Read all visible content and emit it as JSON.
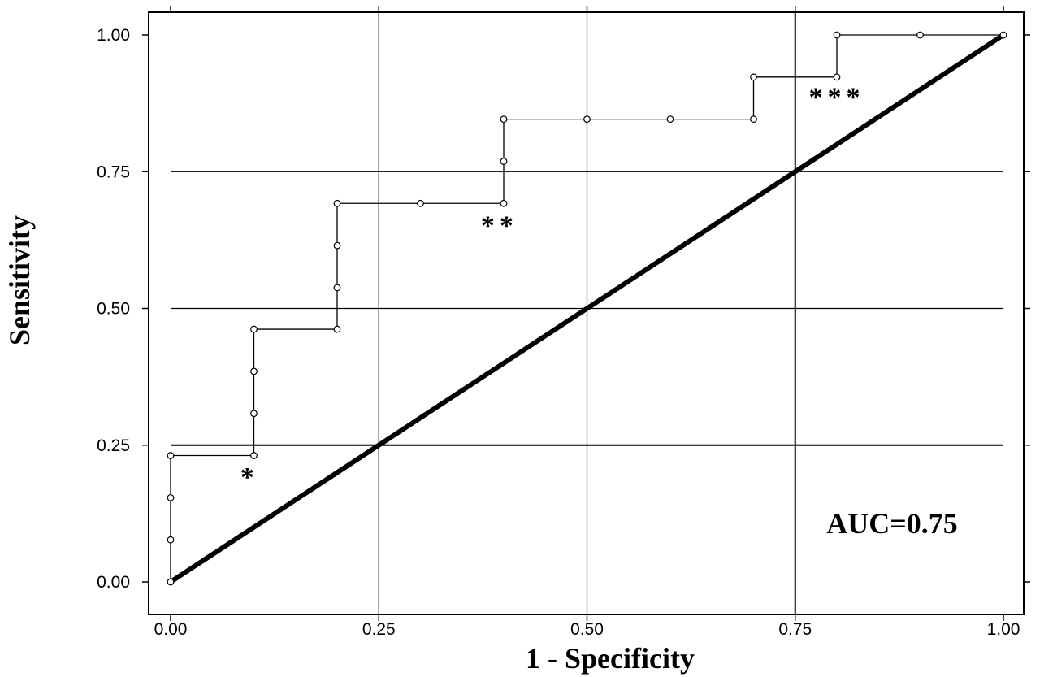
{
  "chart_data": {
    "type": "line",
    "xlabel": "1 - Specificity",
    "ylabel": "Sensitivity",
    "xlim": [
      0,
      1
    ],
    "ylim": [
      0,
      1
    ],
    "xticks": [
      0,
      0.25,
      0.5,
      0.75,
      1
    ],
    "yticks": [
      0,
      0.25,
      0.5,
      0.75,
      1
    ],
    "xtick_labels": [
      "0.00",
      "0.25",
      "0.50",
      "0.75",
      "1.00"
    ],
    "ytick_labels": [
      "0.00",
      "0.25",
      "0.50",
      "0.75",
      "1.00"
    ],
    "grid": true,
    "series": [
      {
        "style": "step-line-with-circle-markers",
        "x": [
          0.0,
          0.0,
          0.0,
          0.0,
          0.1,
          0.1,
          0.1,
          0.1,
          0.2,
          0.2,
          0.2,
          0.2,
          0.3,
          0.4,
          0.4,
          0.4,
          0.5,
          0.6,
          0.7,
          0.7,
          0.8,
          0.8,
          0.9,
          1.0
        ],
        "y": [
          0.0,
          0.077,
          0.154,
          0.231,
          0.231,
          0.308,
          0.385,
          0.462,
          0.462,
          0.538,
          0.615,
          0.692,
          0.692,
          0.692,
          0.769,
          0.846,
          0.846,
          0.846,
          0.846,
          0.923,
          0.923,
          1.0,
          1.0,
          1.0
        ]
      },
      {
        "style": "thick-diagonal-reference",
        "x": [
          0,
          1
        ],
        "y": [
          0,
          1
        ]
      }
    ],
    "annotations": [
      {
        "text": "*",
        "x": 0.095,
        "y": 0.175,
        "size": 34
      },
      {
        "text": "**",
        "x": 0.395,
        "y": 0.635,
        "size": 34
      },
      {
        "text": "***",
        "x": 0.8,
        "y": 0.87,
        "size": 34
      }
    ],
    "auc_label": "AUC=0.75"
  }
}
